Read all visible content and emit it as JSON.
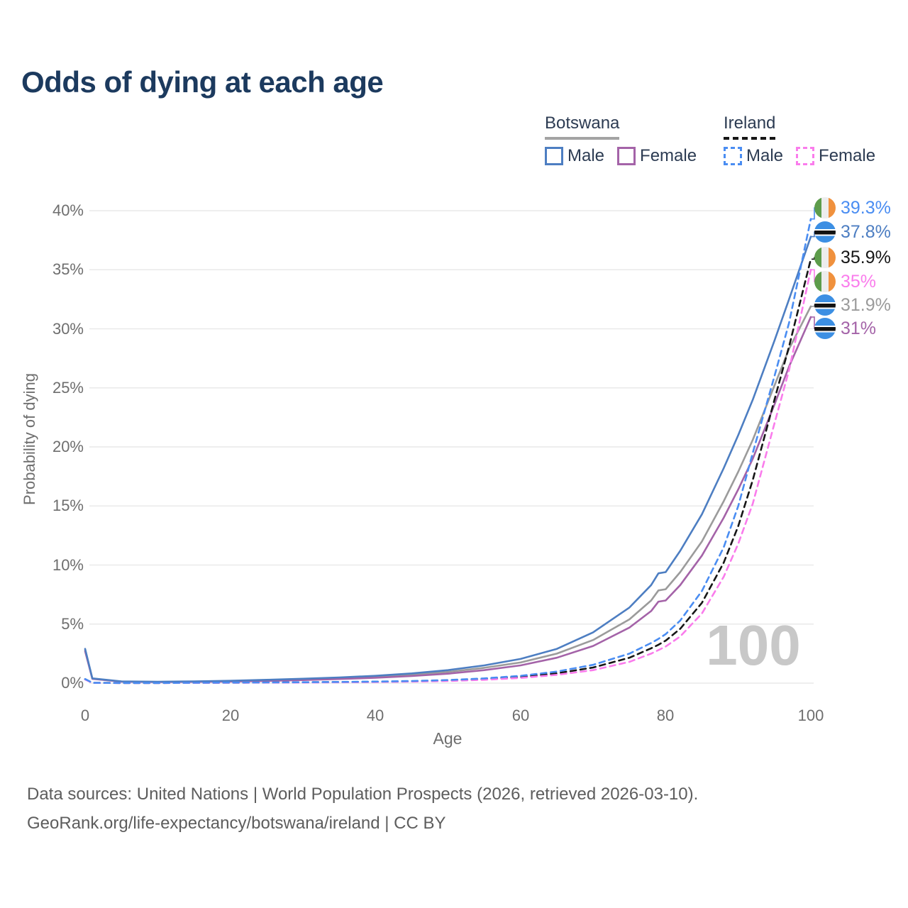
{
  "title": "Odds of dying at each age",
  "legend": {
    "groups": [
      {
        "label": "Botswana",
        "line_style": "solid",
        "underline_color": "#a3a3a3",
        "items": [
          {
            "label": "Male",
            "color": "#4d7ec2"
          },
          {
            "label": "Female",
            "color": "#a463a8"
          }
        ]
      },
      {
        "label": "Ireland",
        "line_style": "dashed",
        "underline_color": "#161616",
        "items": [
          {
            "label": "Male",
            "color": "#4a8df2"
          },
          {
            "label": "Female",
            "color": "#fa7cec"
          }
        ]
      }
    ]
  },
  "flag_colors": {
    "ireland": [
      "#5d9c4b",
      "#ededed",
      "#f0913d"
    ],
    "botswana": [
      "#3c8fe3",
      "#ffffff",
      "#121212"
    ]
  },
  "age_indicator": "100",
  "chart_data": {
    "type": "line",
    "title": "Odds of dying at each age",
    "xlabel": "Age",
    "ylabel": "Probability of dying",
    "xlim": [
      0,
      100
    ],
    "ylim": [
      0,
      40
    ],
    "grid": "horizontal-only",
    "x_ticks": [
      "0",
      "20",
      "40",
      "60",
      "80",
      "100"
    ],
    "x_tick_values": [
      0,
      20,
      40,
      60,
      80,
      100
    ],
    "y_ticks": [
      "0%",
      "5%",
      "10%",
      "15%",
      "20%",
      "25%",
      "30%",
      "35%",
      "40%"
    ],
    "y_tick_values": [
      0,
      5,
      10,
      15,
      20,
      25,
      30,
      35,
      40
    ],
    "legend_position": "top-right",
    "ages": [
      0,
      1,
      5,
      10,
      15,
      20,
      25,
      30,
      35,
      40,
      45,
      50,
      55,
      60,
      65,
      70,
      75,
      78,
      79,
      80,
      82,
      85,
      88,
      90,
      92,
      95,
      97,
      100
    ],
    "series": [
      {
        "name": "Ireland Male",
        "country": "Ireland",
        "sex": "Male",
        "style": "dashed",
        "color": "#4a8df2",
        "flag": "ireland",
        "end_label": "39.3%",
        "values": [
          0.35,
          0.03,
          0.01,
          0.01,
          0.03,
          0.05,
          0.06,
          0.08,
          0.1,
          0.13,
          0.18,
          0.26,
          0.4,
          0.62,
          0.98,
          1.55,
          2.5,
          3.4,
          3.75,
          4.15,
          5.3,
          7.8,
          11.5,
          15.0,
          19.5,
          26.0,
          30.5,
          39.3
        ]
      },
      {
        "name": "Botswana Male",
        "country": "Botswana",
        "sex": "Male",
        "style": "solid",
        "color": "#4d7ec2",
        "flag": "botswana",
        "end_label": "37.8%",
        "values": [
          2.9,
          0.4,
          0.15,
          0.12,
          0.15,
          0.2,
          0.28,
          0.37,
          0.48,
          0.62,
          0.82,
          1.1,
          1.5,
          2.05,
          2.9,
          4.3,
          6.4,
          8.3,
          9.3,
          9.4,
          11.2,
          14.3,
          18.2,
          21.0,
          24.0,
          29.0,
          32.5,
          37.8
        ]
      },
      {
        "name": "Ireland Both sexes",
        "country": "Ireland",
        "sex": "Both",
        "style": "dashed",
        "color": "#161616",
        "flag": "ireland",
        "end_label": "35.9%",
        "values": [
          0.33,
          0.025,
          0.01,
          0.01,
          0.025,
          0.04,
          0.05,
          0.07,
          0.09,
          0.11,
          0.15,
          0.22,
          0.34,
          0.53,
          0.83,
          1.32,
          2.15,
          2.95,
          3.25,
          3.6,
          4.6,
          6.8,
          10.2,
          13.3,
          17.2,
          24.0,
          28.5,
          35.9
        ]
      },
      {
        "name": "Ireland Female",
        "country": "Ireland",
        "sex": "Female",
        "style": "dashed",
        "color": "#fa7cec",
        "flag": "ireland",
        "end_label": "35%",
        "values": [
          0.3,
          0.02,
          0.01,
          0.01,
          0.02,
          0.03,
          0.04,
          0.05,
          0.07,
          0.09,
          0.13,
          0.18,
          0.28,
          0.44,
          0.7,
          1.1,
          1.8,
          2.5,
          2.8,
          3.1,
          3.95,
          5.9,
          9.0,
          11.8,
          15.2,
          22.0,
          26.5,
          35.0
        ]
      },
      {
        "name": "Botswana Both sexes",
        "country": "Botswana",
        "sex": "Both",
        "style": "solid",
        "color": "#9b9b9b",
        "flag": "botswana",
        "end_label": "31.9%",
        "values": [
          2.8,
          0.38,
          0.13,
          0.1,
          0.13,
          0.16,
          0.22,
          0.31,
          0.41,
          0.53,
          0.7,
          0.95,
          1.3,
          1.75,
          2.5,
          3.65,
          5.4,
          7.0,
          7.85,
          7.95,
          9.4,
          12.0,
          15.4,
          17.9,
          20.6,
          25.2,
          28.3,
          31.9
        ]
      },
      {
        "name": "Botswana Female",
        "country": "Botswana",
        "sex": "Female",
        "style": "solid",
        "color": "#a463a8",
        "flag": "botswana",
        "end_label": "31%",
        "values": [
          2.7,
          0.36,
          0.12,
          0.09,
          0.11,
          0.13,
          0.18,
          0.26,
          0.35,
          0.45,
          0.6,
          0.8,
          1.1,
          1.5,
          2.15,
          3.15,
          4.7,
          6.1,
          6.9,
          7.0,
          8.3,
          10.8,
          14.0,
          16.4,
          19.0,
          23.6,
          26.8,
          31.0
        ]
      }
    ]
  },
  "footer": {
    "line1": "Data sources: United Nations | World Population Prospects (2026, retrieved 2026-03-10).",
    "line2": "GeoRank.org/life-expectancy/botswana/ireland | CC BY"
  }
}
